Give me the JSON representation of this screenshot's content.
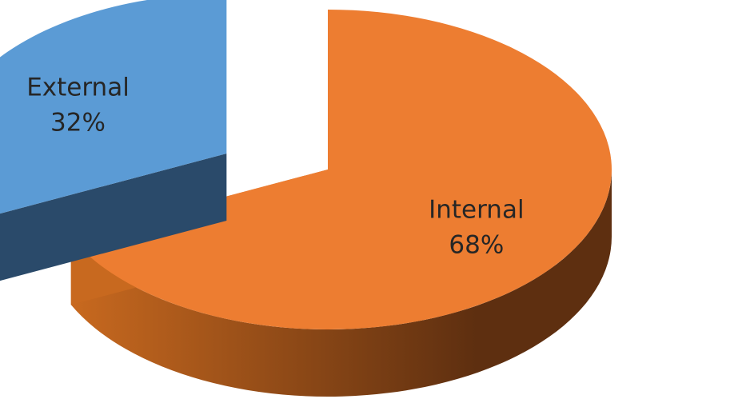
{
  "chart_data": {
    "type": "pie",
    "style": "3d-exploded",
    "title": "",
    "legend": "none",
    "slices": [
      {
        "name": "Internal",
        "value": 68,
        "label": "68%",
        "color": "#ed7d31",
        "side_color_dark": "#5e2f10",
        "side_color_light": "#c8691f"
      },
      {
        "name": "External",
        "value": 32,
        "label": "32%",
        "color": "#5b9bd5",
        "side_color_dark": "#1f3a54",
        "side_color_light": "#2a4a6a",
        "exploded": true
      }
    ]
  }
}
